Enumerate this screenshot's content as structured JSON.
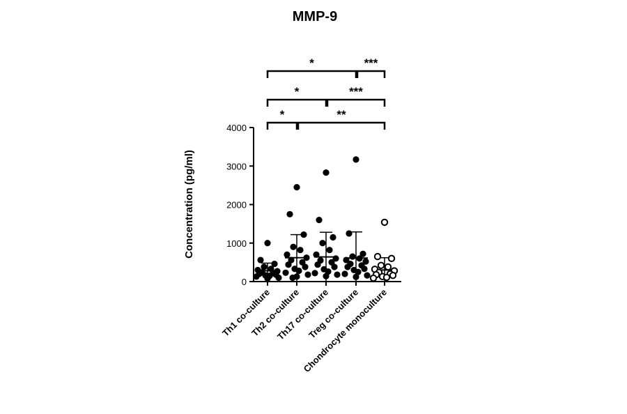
{
  "chart_data": {
    "type": "scatter",
    "title": "MMP-9",
    "ylabel": "Concentration (pg/ml)",
    "xlabel": "",
    "ylim": [
      0,
      4000
    ],
    "yticks": [
      "0",
      "1000",
      "2000",
      "3000",
      "4000"
    ],
    "categories": [
      "Th1 co-culture",
      "Th2 co-culture",
      "Th17 co-culture",
      "Treg co-culture",
      "Chondrocyte monoculture"
    ],
    "groups": [
      {
        "category": "Th1 co-culture",
        "mean": 280,
        "sd": 200,
        "filled": true,
        "values": [
          1000,
          560,
          460,
          380,
          330,
          300,
          270,
          240,
          220,
          200,
          180,
          160,
          150,
          130,
          100,
          80
        ]
      },
      {
        "category": "Th2 co-culture",
        "mean": 620,
        "sd": 600,
        "filled": true,
        "values": [
          2450,
          1750,
          1220,
          900,
          820,
          700,
          620,
          560,
          500,
          440,
          380,
          330,
          280,
          230,
          180,
          130,
          100
        ]
      },
      {
        "category": "Th17 co-culture",
        "mean": 640,
        "sd": 640,
        "filled": true,
        "values": [
          2830,
          1600,
          1150,
          1000,
          820,
          700,
          600,
          550,
          500,
          440,
          380,
          320,
          260,
          220,
          180,
          140
        ]
      },
      {
        "category": "Treg co-culture",
        "mean": 610,
        "sd": 680,
        "filled": true,
        "values": [
          3170,
          1250,
          720,
          650,
          600,
          560,
          520,
          460,
          420,
          380,
          330,
          300,
          250,
          200,
          160,
          120
        ]
      },
      {
        "category": "Chondrocyte monoculture",
        "mean": 300,
        "sd": 320,
        "filled": false,
        "values": [
          1540,
          650,
          600,
          420,
          380,
          320,
          280,
          240,
          200,
          180,
          160,
          130,
          110,
          90
        ]
      }
    ],
    "significance": [
      {
        "from": 0,
        "to": 1,
        "label": "*"
      },
      {
        "from": 1,
        "to": 4,
        "label": "**"
      },
      {
        "from": 0,
        "to": 2,
        "label": "*"
      },
      {
        "from": 2,
        "to": 4,
        "label": "***"
      },
      {
        "from": 0,
        "to": 3,
        "label": "*"
      },
      {
        "from": 3,
        "to": 4,
        "label": "***"
      }
    ]
  }
}
